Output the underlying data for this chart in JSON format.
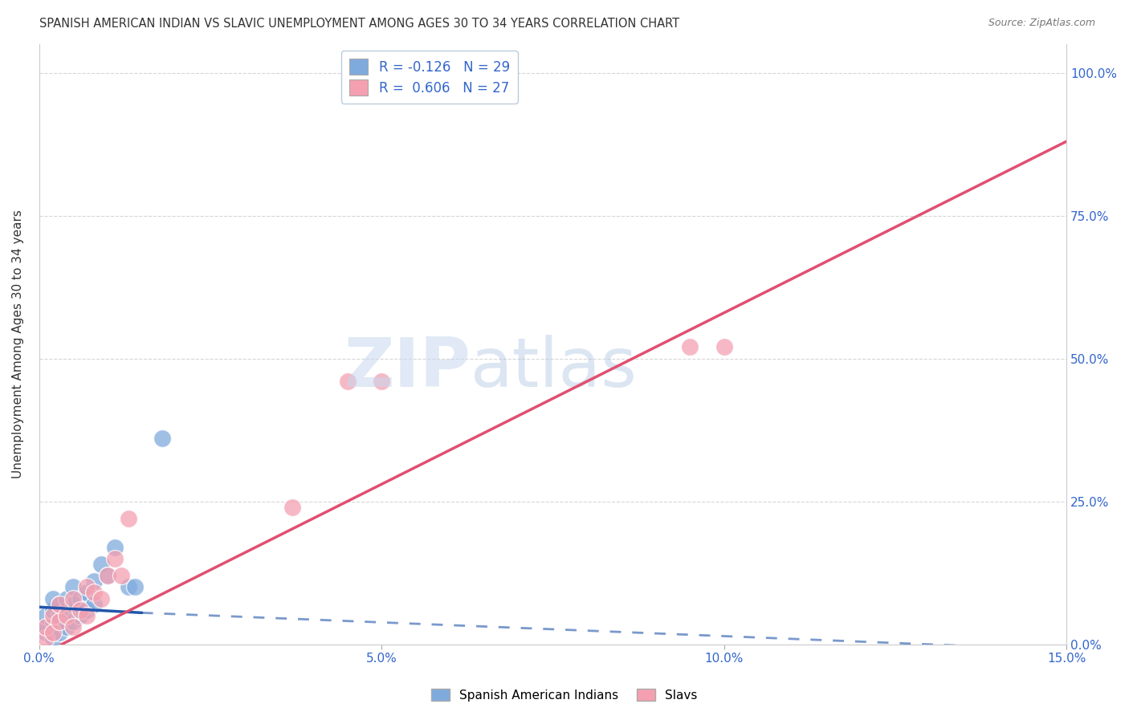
{
  "title": "SPANISH AMERICAN INDIAN VS SLAVIC UNEMPLOYMENT AMONG AGES 30 TO 34 YEARS CORRELATION CHART",
  "source": "Source: ZipAtlas.com",
  "xlabel": "",
  "ylabel": "Unemployment Among Ages 30 to 34 years",
  "xlim": [
    0.0,
    0.15
  ],
  "ylim": [
    0.0,
    1.05
  ],
  "xticks": [
    0.0,
    0.05,
    0.1,
    0.15
  ],
  "xtick_labels": [
    "0.0%",
    "5.0%",
    "10.0%",
    "15.0%"
  ],
  "yticks": [
    0.0,
    0.25,
    0.5,
    0.75,
    1.0
  ],
  "ytick_labels": [
    "0.0%",
    "25.0%",
    "50.0%",
    "75.0%",
    "100.0%"
  ],
  "blue_color": "#7faadd",
  "pink_color": "#f4a0b0",
  "blue_line_color": "#2255aa",
  "pink_line_color": "#e05070",
  "background_color": "#ffffff",
  "grid_color": "#cccccc",
  "title_color": "#333333",
  "axis_label_color": "#333333",
  "tick_color_x": "#3366cc",
  "tick_color_y": "#3366cc",
  "blue_x": [
    0.001,
    0.001,
    0.001,
    0.002,
    0.002,
    0.002,
    0.002,
    0.003,
    0.003,
    0.003,
    0.003,
    0.004,
    0.004,
    0.004,
    0.005,
    0.005,
    0.005,
    0.006,
    0.006,
    0.007,
    0.007,
    0.008,
    0.008,
    0.009,
    0.01,
    0.011,
    0.013,
    0.014,
    0.018
  ],
  "blue_y": [
    0.02,
    0.03,
    0.05,
    0.01,
    0.04,
    0.06,
    0.08,
    0.02,
    0.04,
    0.05,
    0.07,
    0.03,
    0.06,
    0.08,
    0.04,
    0.07,
    0.1,
    0.05,
    0.08,
    0.06,
    0.09,
    0.07,
    0.11,
    0.14,
    0.12,
    0.17,
    0.1,
    0.1,
    0.36
  ],
  "pink_x": [
    0.001,
    0.001,
    0.002,
    0.002,
    0.003,
    0.003,
    0.004,
    0.005,
    0.005,
    0.006,
    0.007,
    0.007,
    0.008,
    0.009,
    0.01,
    0.011,
    0.012,
    0.013,
    0.037,
    0.045,
    0.05,
    0.095,
    0.1
  ],
  "pink_y": [
    0.01,
    0.03,
    0.02,
    0.05,
    0.04,
    0.07,
    0.05,
    0.03,
    0.08,
    0.06,
    0.05,
    0.1,
    0.09,
    0.08,
    0.12,
    0.15,
    0.12,
    0.22,
    0.24,
    0.46,
    0.46,
    0.52,
    0.52
  ],
  "blue_line_x0": 0.0,
  "blue_line_y0": 0.065,
  "blue_line_x1": 0.015,
  "blue_line_y1": 0.055,
  "blue_line_xdash0": 0.015,
  "blue_line_ydash0": 0.055,
  "blue_line_xdash1": 0.15,
  "blue_line_ydash1": -0.01,
  "pink_line_x0": 0.0,
  "pink_line_y0": -0.02,
  "pink_line_x1": 0.15,
  "pink_line_y1": 0.88
}
